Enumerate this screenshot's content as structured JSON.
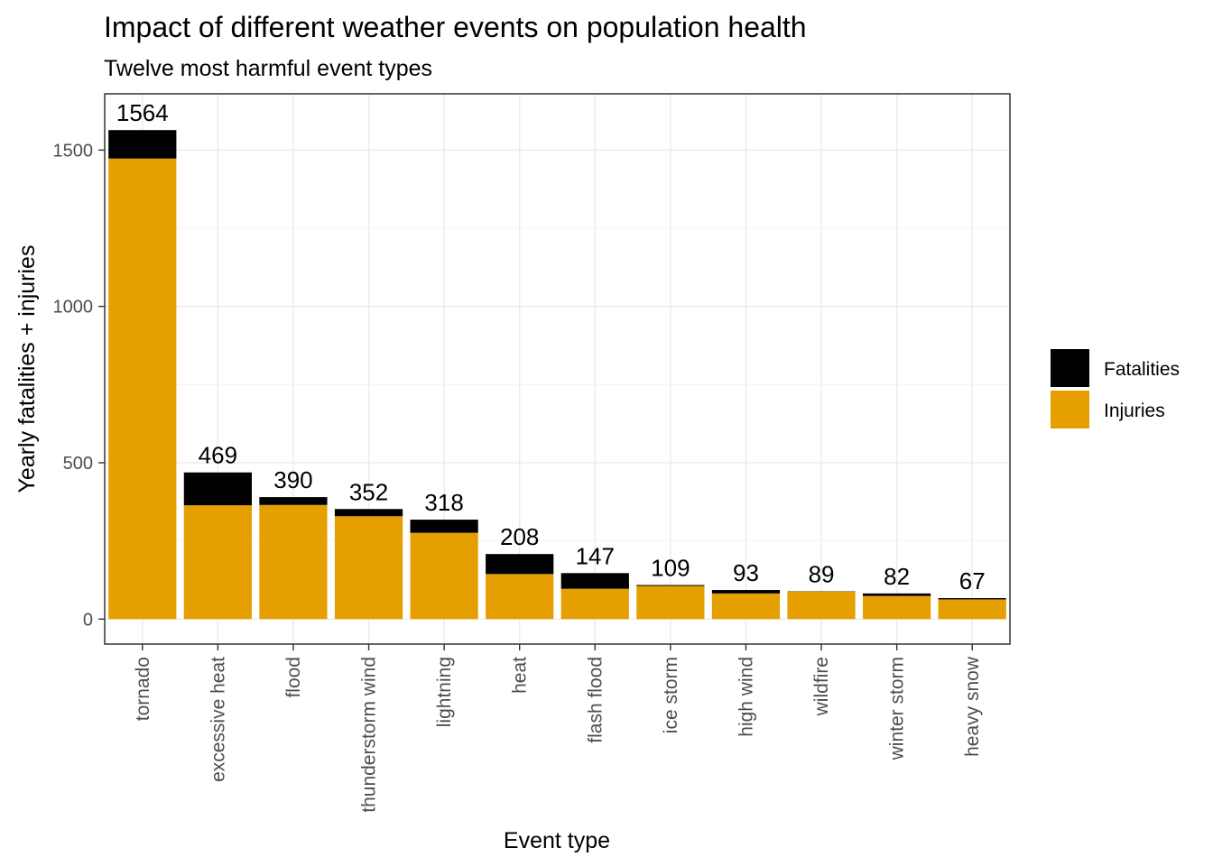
{
  "chart_data": {
    "type": "bar",
    "stacked": true,
    "title": "Impact of different weather events on population health",
    "subtitle": "Twelve most harmful event types",
    "xlabel": "Event type",
    "ylabel": "Yearly fatalities + injuries",
    "ylim": [
      -80,
      1680
    ],
    "yticks": [
      0,
      500,
      1000,
      1500
    ],
    "grid": true,
    "legend_position": "right",
    "categories": [
      "tornado",
      "excessive heat",
      "flood",
      "thunderstorm wind",
      "lightning",
      "heat",
      "flash flood",
      "ice storm",
      "high wind",
      "wildfire",
      "winter storm",
      "heavy snow"
    ],
    "series": [
      {
        "name": "Injuries",
        "color": "#E69F00",
        "values": [
          1473,
          364,
          365,
          329,
          276,
          144,
          97,
          106,
          82,
          88,
          74,
          63
        ]
      },
      {
        "name": "Fatalities",
        "color": "#000000",
        "values": [
          91,
          105,
          25,
          23,
          42,
          64,
          50,
          3,
          11,
          1,
          8,
          4
        ]
      }
    ],
    "totals": [
      1564,
      469,
      390,
      352,
      318,
      208,
      147,
      109,
      93,
      89,
      82,
      67
    ]
  }
}
